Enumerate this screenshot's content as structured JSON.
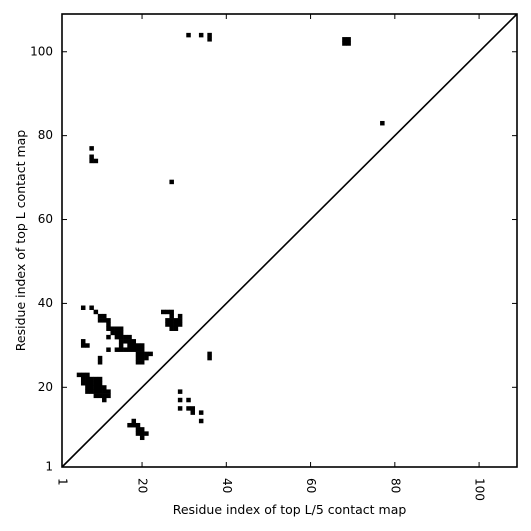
{
  "chart_data": {
    "type": "heatmap",
    "title": "",
    "xlabel": "Residue index of top L/5 contact map",
    "ylabel": "Residue index of top L contact map",
    "xlim": [
      1,
      109
    ],
    "ylim": [
      1,
      109
    ],
    "x_ticks": [
      1,
      20,
      40,
      60,
      80,
      100
    ],
    "y_ticks": [
      1,
      20,
      40,
      60,
      80,
      100
    ],
    "x_tick_labels": [
      "1",
      "20",
      "40",
      "60",
      "80",
      "100"
    ],
    "y_tick_labels": [
      "1",
      "20",
      "40",
      "60",
      "80",
      "100"
    ],
    "x_tick_rotation": -90,
    "diagonal": true,
    "grid": false,
    "cell_color": "#000000",
    "background": "#ffffff",
    "contacts": [
      [
        31,
        104
      ],
      [
        34,
        104
      ],
      [
        36,
        103
      ],
      [
        36,
        104
      ],
      [
        68,
        102
      ],
      [
        69,
        102
      ],
      [
        68,
        103
      ],
      [
        69,
        103
      ],
      [
        77,
        83
      ],
      [
        8,
        77
      ],
      [
        8,
        75
      ],
      [
        8,
        74
      ],
      [
        9,
        74
      ],
      [
        27,
        69
      ],
      [
        6,
        39
      ],
      [
        8,
        39
      ],
      [
        9,
        38
      ],
      [
        10,
        37
      ],
      [
        11,
        37
      ],
      [
        10,
        36
      ],
      [
        11,
        36
      ],
      [
        12,
        36
      ],
      [
        12,
        35
      ],
      [
        12,
        34
      ],
      [
        13,
        34
      ],
      [
        14,
        34
      ],
      [
        15,
        34
      ],
      [
        13,
        33
      ],
      [
        14,
        33
      ],
      [
        15,
        33
      ],
      [
        14,
        32
      ],
      [
        15,
        32
      ],
      [
        16,
        32
      ],
      [
        17,
        32
      ],
      [
        12,
        32
      ],
      [
        15,
        31
      ],
      [
        16,
        31
      ],
      [
        17,
        31
      ],
      [
        18,
        31
      ],
      [
        15,
        30
      ],
      [
        17,
        30
      ],
      [
        18,
        30
      ],
      [
        19,
        30
      ],
      [
        20,
        30
      ],
      [
        6,
        31
      ],
      [
        6,
        30
      ],
      [
        7,
        30
      ],
      [
        14,
        29
      ],
      [
        15,
        29
      ],
      [
        16,
        29
      ],
      [
        17,
        29
      ],
      [
        18,
        29
      ],
      [
        19,
        29
      ],
      [
        20,
        29
      ],
      [
        12,
        29
      ],
      [
        19,
        28
      ],
      [
        20,
        28
      ],
      [
        21,
        28
      ],
      [
        22,
        28
      ],
      [
        19,
        27
      ],
      [
        20,
        27
      ],
      [
        21,
        27
      ],
      [
        19,
        26
      ],
      [
        20,
        26
      ],
      [
        10,
        27
      ],
      [
        10,
        26
      ],
      [
        25,
        38
      ],
      [
        26,
        38
      ],
      [
        27,
        38
      ],
      [
        27,
        37
      ],
      [
        29,
        37
      ],
      [
        26,
        36
      ],
      [
        27,
        36
      ],
      [
        28,
        36
      ],
      [
        29,
        36
      ],
      [
        26,
        35
      ],
      [
        27,
        35
      ],
      [
        28,
        35
      ],
      [
        29,
        35
      ],
      [
        27,
        34
      ],
      [
        28,
        34
      ],
      [
        36,
        28
      ],
      [
        36,
        27
      ],
      [
        5,
        23
      ],
      [
        6,
        23
      ],
      [
        7,
        23
      ],
      [
        6,
        22
      ],
      [
        7,
        22
      ],
      [
        8,
        22
      ],
      [
        9,
        22
      ],
      [
        10,
        22
      ],
      [
        6,
        21
      ],
      [
        7,
        21
      ],
      [
        8,
        21
      ],
      [
        9,
        21
      ],
      [
        10,
        21
      ],
      [
        7,
        20
      ],
      [
        8,
        20
      ],
      [
        9,
        20
      ],
      [
        10,
        20
      ],
      [
        11,
        20
      ],
      [
        7,
        19
      ],
      [
        8,
        19
      ],
      [
        9,
        19
      ],
      [
        10,
        19
      ],
      [
        11,
        19
      ],
      [
        12,
        19
      ],
      [
        9,
        18
      ],
      [
        10,
        18
      ],
      [
        11,
        18
      ],
      [
        12,
        18
      ],
      [
        11,
        17
      ],
      [
        29,
        19
      ],
      [
        29,
        17
      ],
      [
        31,
        17
      ],
      [
        29,
        15
      ],
      [
        31,
        15
      ],
      [
        32,
        15
      ],
      [
        32,
        14
      ],
      [
        34,
        14
      ],
      [
        34,
        12
      ],
      [
        18,
        12
      ],
      [
        17,
        11
      ],
      [
        18,
        11
      ],
      [
        19,
        11
      ],
      [
        19,
        10
      ],
      [
        20,
        10
      ],
      [
        19,
        9
      ],
      [
        20,
        9
      ],
      [
        21,
        9
      ],
      [
        20,
        8
      ]
    ]
  }
}
